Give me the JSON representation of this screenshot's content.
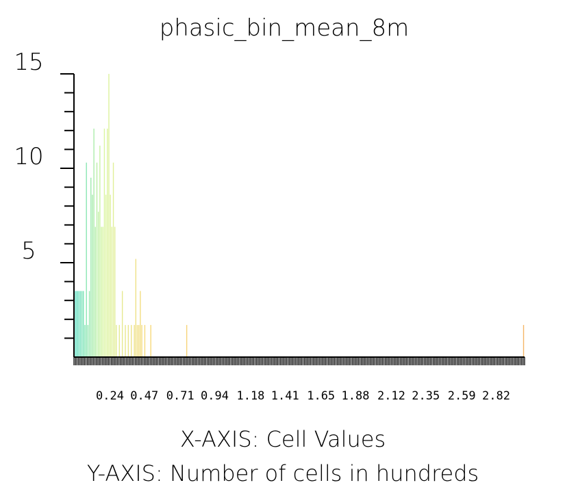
{
  "chart_data": {
    "type": "bar",
    "title": "phasic_bin_mean_8m",
    "xlabel": "X-AXIS: Cell Values",
    "ylabel": "Y-AXIS: Number of cells in hundreds",
    "x_ticks": [
      "0.24",
      "0.47",
      "0.71",
      "0.94",
      "1.18",
      "1.41",
      "1.65",
      "1.88",
      "2.12",
      "2.35",
      "2.59",
      "2.82"
    ],
    "y_ticks": [
      "15",
      "10",
      "5"
    ],
    "y_tick_values": [
      15,
      10,
      5
    ],
    "xlim": [
      0.0,
      3.01
    ],
    "ylim": [
      0,
      15
    ],
    "bins": [
      {
        "x": 0.005,
        "value": 3.5
      },
      {
        "x": 0.015,
        "value": 3.5
      },
      {
        "x": 0.025,
        "value": 3.5
      },
      {
        "x": 0.035,
        "value": 3.5
      },
      {
        "x": 0.045,
        "value": 3.5
      },
      {
        "x": 0.055,
        "value": 3.5
      },
      {
        "x": 0.065,
        "value": 3.5
      },
      {
        "x": 0.075,
        "value": 1.7
      },
      {
        "x": 0.085,
        "value": 10.3
      },
      {
        "x": 0.095,
        "value": 1.7
      },
      {
        "x": 0.105,
        "value": 3.5
      },
      {
        "x": 0.115,
        "value": 9.5
      },
      {
        "x": 0.125,
        "value": 8.6
      },
      {
        "x": 0.135,
        "value": 12.1
      },
      {
        "x": 0.145,
        "value": 6.9
      },
      {
        "x": 0.155,
        "value": 10.3
      },
      {
        "x": 0.165,
        "value": 7.7
      },
      {
        "x": 0.175,
        "value": 11.2
      },
      {
        "x": 0.185,
        "value": 6.9
      },
      {
        "x": 0.195,
        "value": 6.9
      },
      {
        "x": 0.205,
        "value": 12.1
      },
      {
        "x": 0.215,
        "value": 8.6
      },
      {
        "x": 0.225,
        "value": 12.1
      },
      {
        "x": 0.235,
        "value": 15.0
      },
      {
        "x": 0.245,
        "value": 8.6
      },
      {
        "x": 0.255,
        "value": 6.9
      },
      {
        "x": 0.265,
        "value": 10.3
      },
      {
        "x": 0.275,
        "value": 6.9
      },
      {
        "x": 0.285,
        "value": 1.7
      },
      {
        "x": 0.305,
        "value": 1.7
      },
      {
        "x": 0.325,
        "value": 3.5
      },
      {
        "x": 0.345,
        "value": 1.7
      },
      {
        "x": 0.365,
        "value": 1.7
      },
      {
        "x": 0.385,
        "value": 1.7
      },
      {
        "x": 0.405,
        "value": 1.7
      },
      {
        "x": 0.415,
        "value": 5.2
      },
      {
        "x": 0.425,
        "value": 1.7
      },
      {
        "x": 0.435,
        "value": 1.7
      },
      {
        "x": 0.445,
        "value": 3.5
      },
      {
        "x": 0.455,
        "value": 1.7
      },
      {
        "x": 0.475,
        "value": 1.7
      },
      {
        "x": 0.515,
        "value": 1.7
      },
      {
        "x": 0.755,
        "value": 1.7
      },
      {
        "x": 3.005,
        "value": 1.7
      }
    ]
  },
  "colors": {
    "background": "#ffffff",
    "axis": "#000000",
    "bar_low": "#4dd9c0",
    "bar_mid": "#d9f5a0",
    "bar_high": "#f7d87a",
    "bar_far": "#f5b566"
  }
}
